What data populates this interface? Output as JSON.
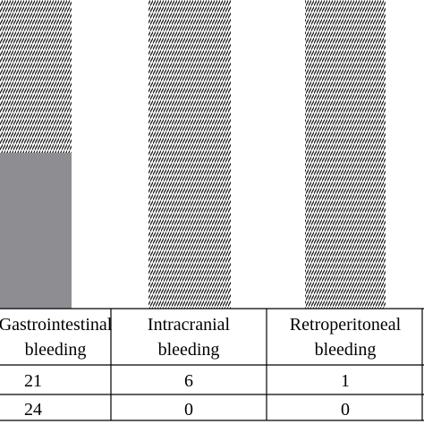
{
  "chart_data": {
    "type": "bar",
    "categories": [
      {
        "line1": "Gastrointestinal",
        "line2": "bleeding"
      },
      {
        "line1": "Intracranial",
        "line2": "bleeding"
      },
      {
        "line1": "Retroperitoneal",
        "line2": "bleeding"
      }
    ],
    "series": [
      {
        "values": [
          21,
          6,
          1
        ],
        "pattern": "hatched",
        "color": "#1a1a1a"
      },
      {
        "values": [
          24,
          0,
          0
        ],
        "pattern": "solid",
        "color": "#8e8e92"
      }
    ],
    "table_rows": [
      [
        "21",
        "6",
        "1"
      ],
      [
        "24",
        "0",
        "0"
      ]
    ],
    "colors": {
      "hatch": "#1a1a1a",
      "solid_bar": "#8e8e92",
      "lines": "#000000",
      "background": "#ffffff"
    },
    "grid": false,
    "legend": "none"
  }
}
